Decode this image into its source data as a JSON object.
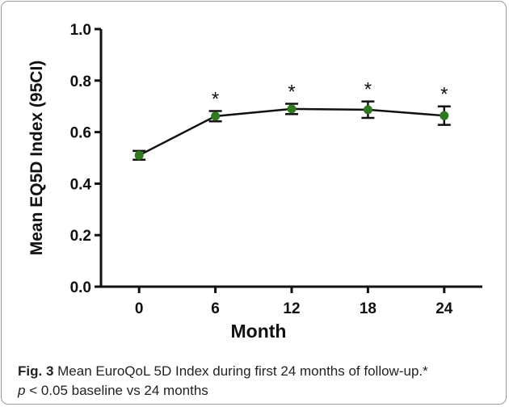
{
  "chart_data": {
    "type": "line",
    "ylabel": "Mean EQ5D Index (95CI)",
    "xlabel": "Month",
    "x": [
      0,
      6,
      12,
      18,
      24
    ],
    "x_ticks": [
      "0",
      "6",
      "12",
      "18",
      "24"
    ],
    "y_ticks": [
      "0.0",
      "0.2",
      "0.4",
      "0.6",
      "0.8",
      "1.0"
    ],
    "ylim": [
      0,
      1.0
    ],
    "series": [
      {
        "values": [
          0.51,
          0.662,
          0.69,
          0.687,
          0.664
        ],
        "ci_lower": [
          0.493,
          0.642,
          0.67,
          0.655,
          0.628
        ],
        "ci_upper": [
          0.527,
          0.682,
          0.71,
          0.719,
          0.7
        ],
        "significance": [
          "",
          "*",
          "*",
          "*",
          "*"
        ]
      }
    ],
    "colors": {
      "line": "#111111",
      "marker": "#2f7a1f",
      "axis": "#111111"
    },
    "grid": false
  },
  "caption": {
    "label": "Fig. 3",
    "text": " Mean EuroQoL 5D Index during first 24 months of follow-up.*",
    "p_symbol": "p",
    "text2": " < 0.05 baseline vs 24 months"
  }
}
